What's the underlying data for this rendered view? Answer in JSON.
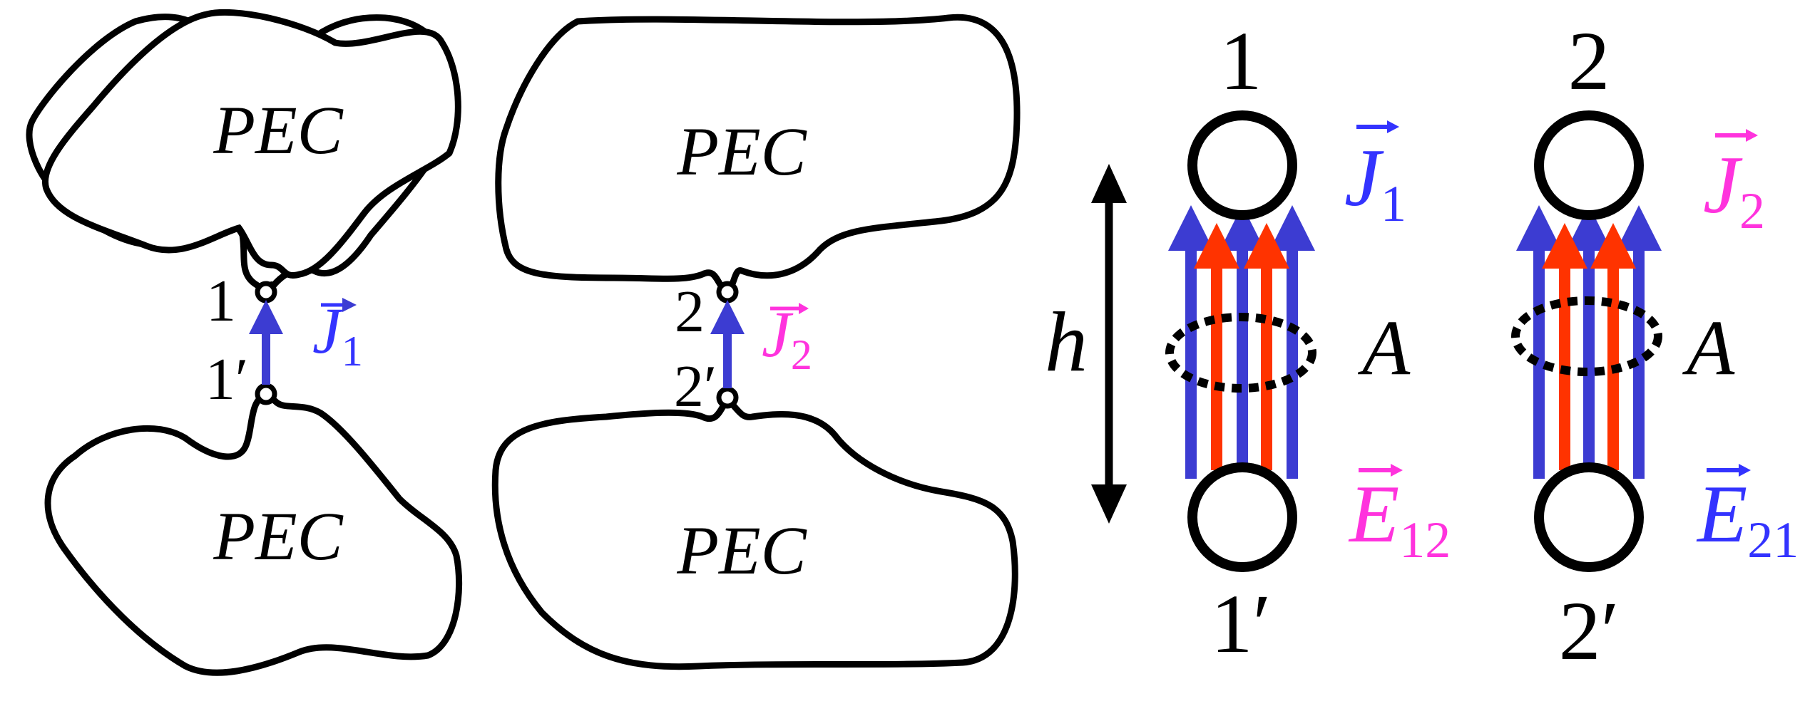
{
  "colors": {
    "outline": "#000000",
    "blue": "#3333ff",
    "magenta": "#ff33dd",
    "red": "#ff3300",
    "arrow_blue": "#3c3cd2"
  },
  "left_antenna": {
    "pec_top": "PEC",
    "pec_bottom": "PEC",
    "terminal_top": "1",
    "terminal_bottom": "1′",
    "current_symbol": "J",
    "current_subscript": "1"
  },
  "middle_antenna": {
    "pec_top": "PEC",
    "pec_bottom": "PEC",
    "terminal_top": "2",
    "terminal_bottom": "2′",
    "current_symbol": "J",
    "current_subscript": "2"
  },
  "height_label": "h",
  "model_1": {
    "terminal_top": "1",
    "terminal_bottom": "1′",
    "current_symbol": "J",
    "current_subscript": "1",
    "area_label": "A",
    "field_symbol": "E",
    "field_subscript": "12"
  },
  "model_2": {
    "terminal_top": "2",
    "terminal_bottom": "2′",
    "current_symbol": "J",
    "current_subscript": "2",
    "area_label": "A",
    "field_symbol": "E",
    "field_subscript": "21"
  }
}
